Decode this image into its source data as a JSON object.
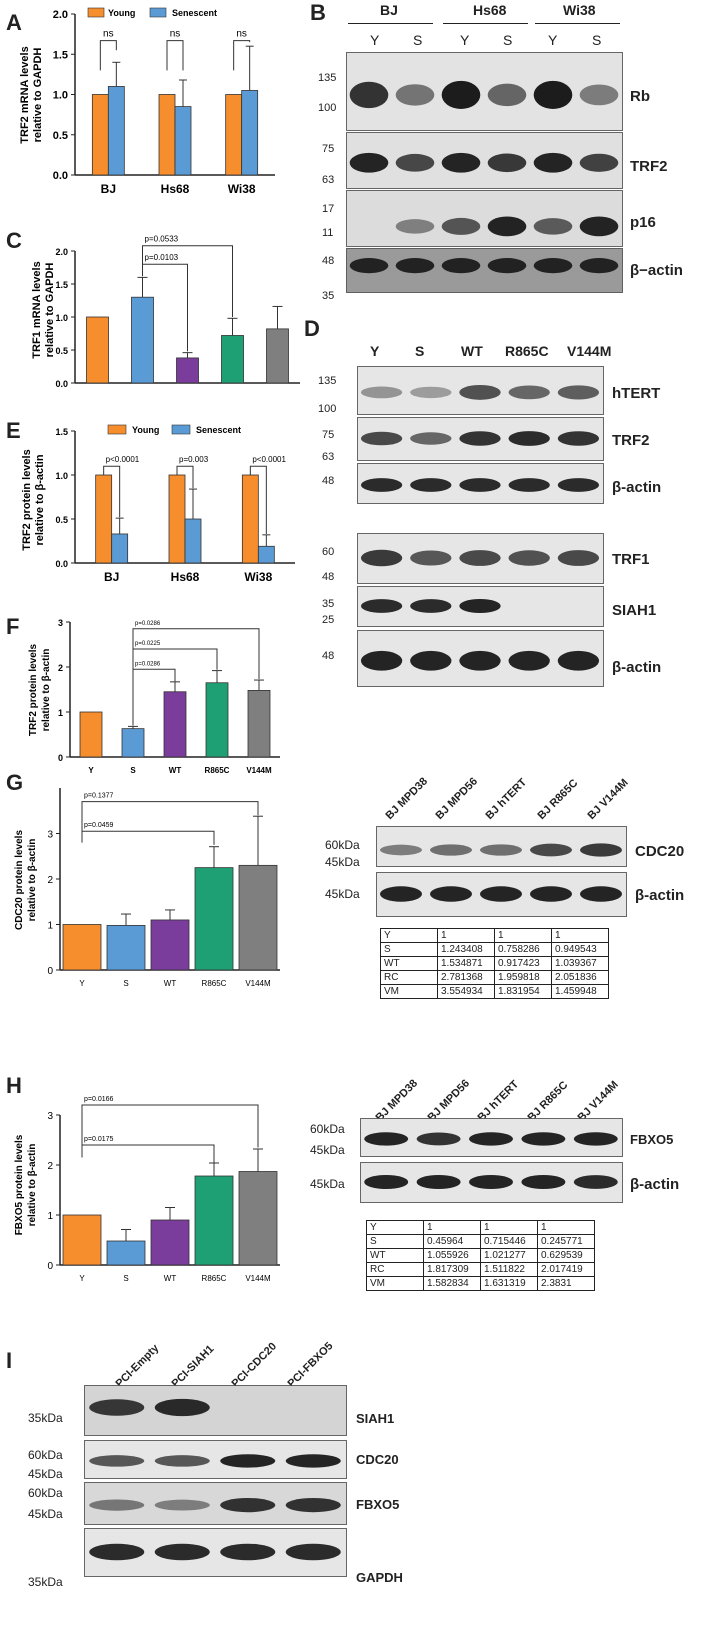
{
  "panel_letters": {
    "A": "A",
    "B": "B",
    "C": "C",
    "D": "D",
    "E": "E",
    "F": "F",
    "G": "G",
    "H": "H",
    "I": "I"
  },
  "colors": {
    "young": "#f78e2e",
    "senescent": "#5a9bd5",
    "wt": "#7b3d9b",
    "r865c": "#1fa074",
    "v144m": "#7f7f7f"
  },
  "legend": {
    "young": "Young",
    "senescent": "Senescent"
  },
  "chart_data": [
    {
      "panel": "A",
      "type": "bar",
      "ylabel": "TRF2 mRNA levels relative to GAPDH",
      "ylim": [
        0,
        2.0
      ],
      "yticks": [
        "0.0",
        "0.5",
        "1.0",
        "1.5",
        "2.0"
      ],
      "categories": [
        "BJ",
        "Hs68",
        "Wi38"
      ],
      "series": [
        {
          "name": "Young",
          "values": [
            1.0,
            1.0,
            1.0
          ],
          "err": [
            0,
            0,
            0
          ]
        },
        {
          "name": "Senescent",
          "values": [
            1.1,
            0.85,
            1.05
          ],
          "err": [
            0.3,
            0.33,
            0.55
          ]
        }
      ],
      "annotations": [
        "ns",
        "ns",
        "ns"
      ]
    },
    {
      "panel": "C",
      "type": "bar",
      "ylabel": "TRF1 mRNA levels relative to GAPDH",
      "ylim": [
        0,
        2.0
      ],
      "yticks": [
        "0.0",
        "0.5",
        "1.0",
        "1.5",
        "2.0"
      ],
      "categories": [
        "Y",
        "S",
        "WT",
        "R865C",
        "V144M"
      ],
      "values": [
        1.0,
        1.3,
        0.38,
        0.72,
        0.82
      ],
      "err": [
        0,
        0.3,
        0.08,
        0.26,
        0.34
      ],
      "annotations": [
        "p=0.0103",
        "p=0.0533"
      ]
    },
    {
      "panel": "E",
      "type": "bar",
      "ylabel": "TRF2 protein levels relative to β-actin",
      "ylim": [
        0,
        1.5
      ],
      "yticks": [
        "0.0",
        "0.5",
        "1.0",
        "1.5"
      ],
      "categories": [
        "BJ",
        "Hs68",
        "Wi38"
      ],
      "series": [
        {
          "name": "Young",
          "values": [
            1.0,
            1.0,
            1.0
          ],
          "err": [
            0,
            0,
            0
          ]
        },
        {
          "name": "Senescent",
          "values": [
            0.33,
            0.5,
            0.19
          ],
          "err": [
            0.18,
            0.34,
            0.13
          ]
        }
      ],
      "annotations": [
        "p<0.0001",
        "p=0.003",
        "p<0.0001"
      ]
    },
    {
      "panel": "F",
      "type": "bar",
      "ylabel": "TRF2 protein levels relative to β-actin",
      "ylim": [
        0,
        3
      ],
      "yticks": [
        "0",
        "1",
        "2",
        "3"
      ],
      "categories": [
        "Y",
        "S",
        "WT",
        "R865C",
        "V144M"
      ],
      "values": [
        1.0,
        0.63,
        1.45,
        1.65,
        1.48
      ],
      "err": [
        0,
        0.05,
        0.22,
        0.27,
        0.23
      ],
      "annotations": [
        "p=0.0286",
        "p=0.0225",
        "p=0.0286"
      ]
    },
    {
      "panel": "G",
      "type": "bar",
      "ylabel": "CDC20 protein levels relative to β-actin",
      "ylim": [
        0,
        4
      ],
      "yticks": [
        "0",
        "1",
        "2",
        "3"
      ],
      "categories": [
        "Y",
        "S",
        "WT",
        "R865C",
        "V144M"
      ],
      "values": [
        1.0,
        0.98,
        1.1,
        2.25,
        2.3
      ],
      "err": [
        0,
        0.25,
        0.22,
        0.46,
        1.08
      ],
      "annotations": [
        "p=0.0459",
        "p=0.1377"
      ]
    },
    {
      "panel": "H",
      "type": "bar",
      "ylabel": "FBXO5 protein levels relative to β-actin",
      "ylim": [
        0,
        3
      ],
      "yticks": [
        "0",
        "1",
        "2",
        "3"
      ],
      "categories": [
        "Y",
        "S",
        "WT",
        "R865C",
        "V144M"
      ],
      "values": [
        1.0,
        0.48,
        0.9,
        1.78,
        1.87
      ],
      "err": [
        0,
        0.23,
        0.25,
        0.26,
        0.45
      ],
      "annotations": [
        "p=0.0175",
        "p=0.0166"
      ]
    }
  ],
  "blotB": {
    "groups": [
      "BJ",
      "Hs68",
      "Wi38"
    ],
    "lanes": [
      "Y",
      "S",
      "Y",
      "S",
      "Y",
      "S"
    ],
    "labels": [
      "Rb",
      "TRF2",
      "p16",
      "β−actin"
    ],
    "mw": [
      "135",
      "100",
      "75",
      "63",
      "17",
      "11",
      "48",
      "35"
    ]
  },
  "blotD": {
    "lanes": [
      "Y",
      "S",
      "WT",
      "R865C",
      "V144M"
    ],
    "labels": [
      "hTERT",
      "TRF2",
      "β-actin",
      "TRF1",
      "SIAH1",
      "β-actin"
    ],
    "mw": [
      "135",
      "100",
      "75",
      "63",
      "48",
      "60",
      "48",
      "35",
      "25",
      "48"
    ]
  },
  "blotG": {
    "lanes": [
      "BJ MPD38",
      "BJ MPD56",
      "BJ hTERT",
      "BJ R865C",
      "BJ V144M"
    ],
    "labels": [
      "CDC20",
      "β-actin"
    ],
    "mw": [
      "60kDa",
      "45kDa",
      "45kDa"
    ],
    "table": [
      [
        "Y",
        "1",
        "1",
        "1"
      ],
      [
        "S",
        "1.243408",
        "0.758286",
        "0.949543"
      ],
      [
        "WT",
        "1.534871",
        "0.917423",
        "1.039367"
      ],
      [
        "RC",
        "2.781368",
        "1.959818",
        "2.051836"
      ],
      [
        "VM",
        "3.554934",
        "1.831954",
        "1.459948"
      ]
    ]
  },
  "blotH": {
    "lanes": [
      "BJ MPD38",
      "BJ MPD56",
      "BJ hTERT",
      "BJ R865C",
      "BJ V144M"
    ],
    "labels": [
      "FBXO5",
      "β-actin"
    ],
    "mw": [
      "60kDa",
      "45kDa",
      "45kDa"
    ],
    "table": [
      [
        "Y",
        "1",
        "1",
        "1"
      ],
      [
        "S",
        "0.45964",
        "0.715446",
        "0.245771"
      ],
      [
        "WT",
        "1.055926",
        "1.021277",
        "0.629539"
      ],
      [
        "RC",
        "1.817309",
        "1.511822",
        "2.017419"
      ],
      [
        "VM",
        "1.582834",
        "1.631319",
        "2.3831"
      ]
    ]
  },
  "blotI": {
    "lanes": [
      "PCI-Empty",
      "PCI-SIAH1",
      "PCI-CDC20",
      "PCI-FBXO5"
    ],
    "labels": [
      "SIAH1",
      "CDC20",
      "FBXO5",
      "GAPDH"
    ],
    "mw": [
      "35kDa",
      "60kDa",
      "45kDa",
      "60kDa",
      "45kDa",
      "35kDa"
    ]
  }
}
